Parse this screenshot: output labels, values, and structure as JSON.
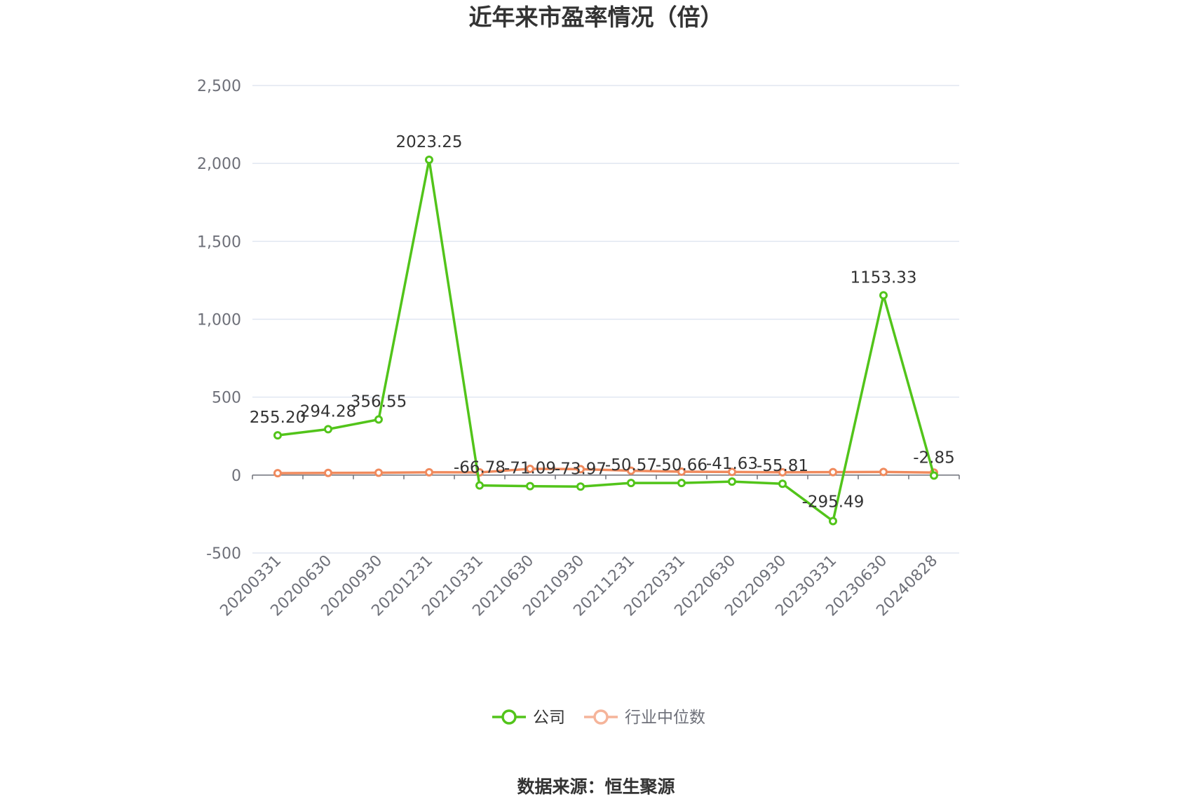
{
  "chart_data": {
    "type": "line",
    "title": "近年来市盈率情况（倍）",
    "categories": [
      "20200331",
      "20200630",
      "20200930",
      "20201231",
      "20210331",
      "20210630",
      "20210930",
      "20211231",
      "20220331",
      "20220630",
      "20220930",
      "20230331",
      "20230630",
      "20240828"
    ],
    "series": [
      {
        "name": "公司",
        "color": "#52c41a",
        "values": [
          255.2,
          294.28,
          356.55,
          2023.25,
          -66.78,
          -71.09,
          -73.97,
          -50.57,
          -50.66,
          -41.63,
          -55.81,
          -295.49,
          1153.33,
          -2.85
        ],
        "labels": [
          "255.20",
          "294.28",
          "356.55",
          "2023.25",
          "-66.78",
          "-71.09",
          "-73.97",
          "-50.57",
          "-50.66",
          "-41.63",
          "-55.81",
          "-295.49",
          "1153.33",
          "-2.85"
        ]
      },
      {
        "name": "行业中位数",
        "color": "#f08a5d",
        "values": [
          12,
          14,
          15,
          18,
          17,
          40,
          38,
          28,
          22,
          20,
          18,
          19,
          20,
          16
        ]
      }
    ],
    "yticks": [
      "2,500",
      "2,000",
      "1,500",
      "1,000",
      "500",
      "0",
      "-500"
    ],
    "ytick_values": [
      2500,
      2000,
      1500,
      1000,
      500,
      0,
      -500
    ],
    "ylim": [
      -500,
      2500
    ],
    "grid": true,
    "legend_position": "bottom-center",
    "source": "数据来源：恒生聚源"
  }
}
